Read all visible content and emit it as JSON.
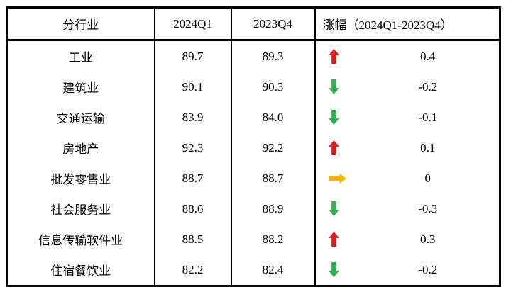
{
  "chart_data": {
    "type": "table",
    "columns": [
      "分行业",
      "2024Q1",
      "2023Q4",
      "涨幅（2024Q1-2023Q4）"
    ],
    "rows": [
      {
        "industry": "工业",
        "v2024q1": "89.7",
        "v2023q4": "89.3",
        "trend": "up",
        "change": "0.4"
      },
      {
        "industry": "建筑业",
        "v2024q1": "90.1",
        "v2023q4": "90.3",
        "trend": "down",
        "change": "-0.2"
      },
      {
        "industry": "交通运输",
        "v2024q1": "83.9",
        "v2023q4": "84.0",
        "trend": "down",
        "change": "-0.1"
      },
      {
        "industry": "房地产",
        "v2024q1": "92.3",
        "v2023q4": "92.2",
        "trend": "up",
        "change": "0.1"
      },
      {
        "industry": "批发零售业",
        "v2024q1": "88.7",
        "v2023q4": "88.7",
        "trend": "flat",
        "change": "0"
      },
      {
        "industry": "社会服务业",
        "v2024q1": "88.6",
        "v2023q4": "88.9",
        "trend": "down",
        "change": "-0.3"
      },
      {
        "industry": "信息传输软件业",
        "v2024q1": "88.5",
        "v2023q4": "88.2",
        "trend": "up",
        "change": "0.3"
      },
      {
        "industry": "住宿餐饮业",
        "v2024q1": "82.2",
        "v2023q4": "82.4",
        "trend": "down",
        "change": "-0.2"
      }
    ]
  },
  "colors": {
    "up": "#e11b1b",
    "down": "#2eb153",
    "flat": "#ffb000",
    "border": "#000000",
    "background": "#ffffff"
  },
  "icons": {
    "up": "up-arrow-icon",
    "down": "down-arrow-icon",
    "flat": "right-arrow-icon"
  }
}
